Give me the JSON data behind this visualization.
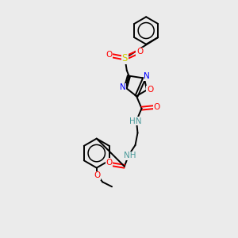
{
  "background_color": "#ebebeb",
  "bond_color": "#000000",
  "atom_colors": {
    "O": "#ff0000",
    "N": "#0000ff",
    "S": "#cccc00",
    "C": "#000000",
    "H": "#4a9a9a"
  },
  "figsize": [
    3.0,
    3.0
  ],
  "dpi": 100
}
